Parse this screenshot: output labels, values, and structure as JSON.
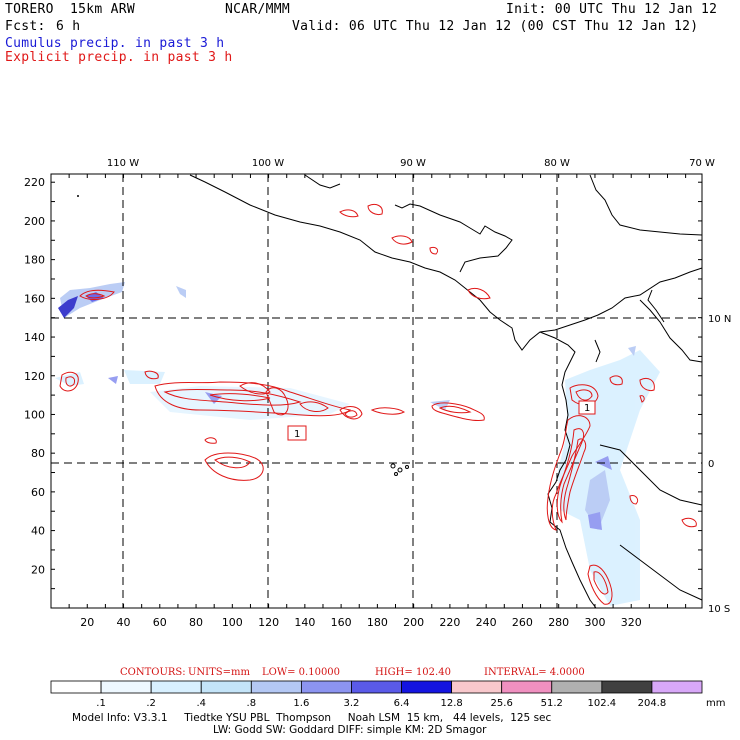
{
  "header": {
    "model": "TORERO  15km ARW",
    "org": "NCAR/MMM",
    "init": "Init: 00 UTC Thu 12 Jan 12",
    "fcst_label": "Fcst:",
    "fcst_value": "6 h",
    "valid": "Valid: 06 UTC Thu 12 Jan 12 (00 CST Thu 12 Jan 12)",
    "field1": "Cumulus precip. in past 3 h",
    "field2": "Explicit precip. in past 3 h"
  },
  "colors": {
    "cumulus": "#1a1ad6",
    "explicit": "#e01818",
    "grid": "#000000"
  },
  "map": {
    "top_lon_labels": [
      "110 W",
      "100 W",
      "90 W",
      "80 W",
      "70 W"
    ],
    "right_lat_labels": [
      "10 N",
      "0",
      "10 S"
    ],
    "y_ticks": [
      "220",
      "200",
      "180",
      "160",
      "140",
      "120",
      "100",
      "80",
      "60",
      "40",
      "20"
    ],
    "x_ticks": [
      "20",
      "40",
      "60",
      "80",
      "100",
      "120",
      "140",
      "160",
      "180",
      "200",
      "220",
      "240",
      "260",
      "280",
      "300",
      "320"
    ],
    "box_labels": [
      "1",
      "1"
    ]
  },
  "contours_line": {
    "label": "CONTOURS:",
    "units": "UNITS=mm",
    "low": "LOW= 0.10000",
    "high": "HIGH= 102.40",
    "interval": "INTERVAL= 4.0000"
  },
  "colorbar": {
    "labels": [
      ".1",
      ".2",
      ".4",
      ".8",
      "1.6",
      "3.2",
      "6.4",
      "12.8",
      "25.6",
      "51.2",
      "102.4",
      "204.8",
      "mm"
    ],
    "colors": [
      "#ffffff",
      "#eef8ff",
      "#d8f0ff",
      "#c4e4f8",
      "#b4c8f4",
      "#8c94f0",
      "#5a5ae8",
      "#1414e0",
      "#f8c8cc",
      "#f090c0",
      "#b0b0b0",
      "#404040",
      "#d8a8f8"
    ]
  },
  "footer": {
    "line1": "Model Info: V3.3.1     Tiedtke YSU PBL  Thompson     Noah LSM  15 km,   44 levels,  125 sec",
    "line2": "LW: Godd SW: Goddard DIFF: simple KM: 2D Smagor"
  }
}
